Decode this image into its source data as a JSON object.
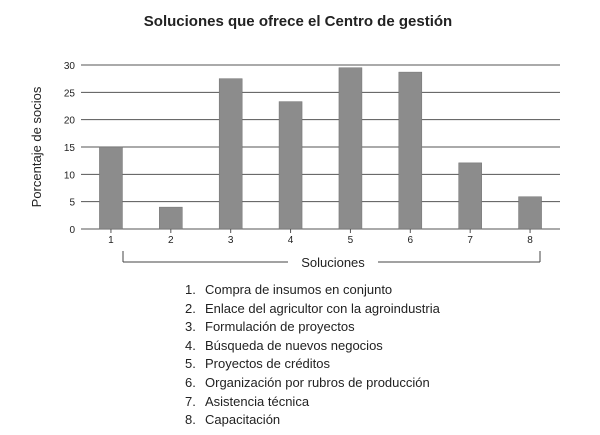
{
  "chart_data": {
    "type": "bar",
    "title": "Soluciones que ofrece el Centro de gestión",
    "xlabel": "Soluciones",
    "ylabel": "Porcentaje de socios",
    "categories": [
      "1",
      "2",
      "3",
      "4",
      "5",
      "6",
      "7",
      "8"
    ],
    "values": [
      15,
      4,
      27.5,
      23.3,
      29.5,
      28.7,
      12.1,
      5.9
    ],
    "ylim": [
      0,
      30
    ],
    "yticks": [
      0,
      5,
      10,
      15,
      20,
      25,
      30
    ],
    "grid": true,
    "bar_color": "#8c8c8c"
  },
  "legend_items": [
    {
      "num": "1.",
      "text": "Compra de insumos en conjunto"
    },
    {
      "num": "2.",
      "text": "Enlace del agricultor con la agroindustria"
    },
    {
      "num": "3.",
      "text": "Formulación de proyectos"
    },
    {
      "num": "4.",
      "text": "Búsqueda de nuevos negocios"
    },
    {
      "num": "5.",
      "text": "Proyectos de créditos"
    },
    {
      "num": "6.",
      "text": "Organización por rubros de producción"
    },
    {
      "num": "7.",
      "text": "Asistencia técnica"
    },
    {
      "num": "8.",
      "text": "Capacitación"
    }
  ]
}
